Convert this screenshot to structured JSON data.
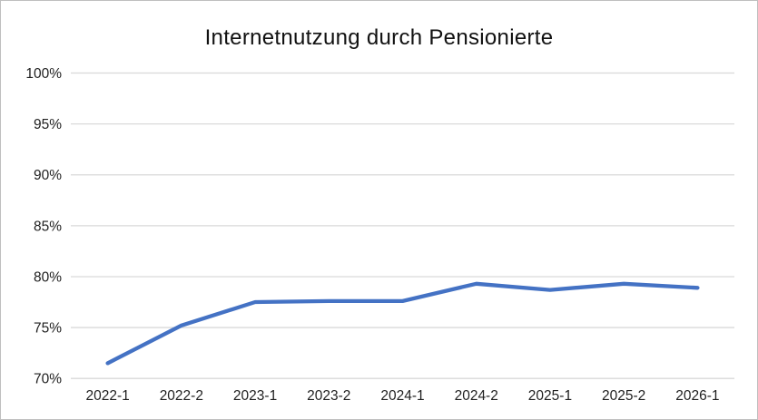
{
  "chart_data": {
    "type": "line",
    "title": "Internetnutzung durch Pensionierte",
    "categories": [
      "2022-1",
      "2022-2",
      "2023-1",
      "2023-2",
      "2024-1",
      "2024-2",
      "2025-1",
      "2025-2",
      "2026-1"
    ],
    "values": [
      71.5,
      75.2,
      77.5,
      77.6,
      77.6,
      79.3,
      78.7,
      79.3,
      78.9
    ],
    "xlabel": "",
    "ylabel": "",
    "ylim": [
      70,
      100
    ],
    "yticks": [
      70,
      75,
      80,
      85,
      90,
      95,
      100
    ],
    "ytick_labels": [
      "70%",
      "75%",
      "80%",
      "85%",
      "90%",
      "95%",
      "100%"
    ],
    "grid": true,
    "legend": "none",
    "colors": {
      "line": "#4472C4",
      "grid": "#D9D9D9",
      "axis_text": "#1f1f1f",
      "frame_border": "#BFBFBF"
    }
  }
}
